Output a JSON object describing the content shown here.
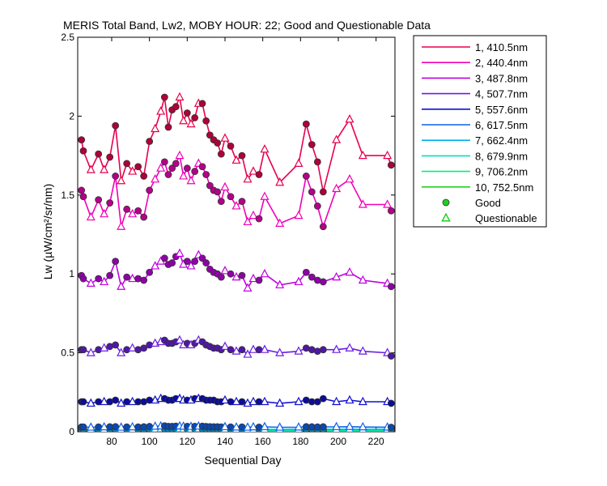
{
  "chart_data": {
    "type": "line",
    "title": "MERIS Total Band,  Lw2, MOBY HOUR: 22;  Good and Questionable Data",
    "xlabel": "Sequential Day",
    "ylabel": "Lw (µW/cm²/sr/nm)",
    "xlim": [
      62,
      230
    ],
    "ylim": [
      0,
      2.5
    ],
    "xticks": [
      80,
      100,
      120,
      140,
      160,
      180,
      200,
      220
    ],
    "yticks": [
      0,
      0.5,
      1,
      1.5,
      2,
      2.5
    ],
    "ytick_labels": [
      "0",
      "0.5",
      "1",
      "1.5",
      "2",
      "2.5"
    ],
    "grid": false,
    "legend_position": "outside-right",
    "x": [
      64,
      65,
      69,
      73,
      76,
      79,
      82,
      85,
      88,
      91,
      94,
      97,
      100,
      103,
      106,
      108,
      110,
      112,
      114,
      116,
      118,
      120,
      122,
      124,
      126,
      128,
      130,
      132,
      134,
      136,
      138,
      140,
      143,
      146,
      149,
      152,
      155,
      158,
      161,
      169,
      179,
      183,
      186,
      189,
      192,
      199,
      206,
      213,
      226,
      228
    ],
    "quality": [
      "G",
      "G",
      "Q",
      "G",
      "Q",
      "G",
      "G",
      "Q",
      "G",
      "Q",
      "G",
      "G",
      "G",
      "Q",
      "Q",
      "G",
      "G",
      "G",
      "G",
      "Q",
      "Q",
      "G",
      "Q",
      "G",
      "Q",
      "G",
      "G",
      "G",
      "G",
      "G",
      "G",
      "Q",
      "G",
      "Q",
      "G",
      "Q",
      "Q",
      "G",
      "Q",
      "Q",
      "Q",
      "G",
      "G",
      "G",
      "G",
      "Q",
      "Q",
      "Q",
      "Q",
      "G"
    ],
    "series": [
      {
        "name": "1, 410.5nm",
        "color": "#e8004c",
        "values": [
          1.85,
          1.78,
          1.66,
          1.76,
          1.66,
          1.74,
          1.94,
          1.59,
          1.7,
          1.65,
          1.68,
          1.62,
          1.84,
          1.92,
          2.03,
          2.12,
          1.93,
          2.04,
          2.06,
          2.12,
          1.97,
          2.02,
          1.95,
          1.99,
          2.08,
          2.08,
          1.97,
          1.88,
          1.85,
          1.83,
          1.76,
          1.86,
          1.81,
          1.72,
          1.75,
          1.6,
          1.65,
          1.63,
          1.79,
          1.58,
          1.7,
          1.95,
          1.82,
          1.71,
          1.52,
          1.85,
          1.98,
          1.75,
          1.75,
          1.69
        ]
      },
      {
        "name": "2, 440.4nm",
        "color": "#f000b8",
        "values": [
          1.53,
          1.49,
          1.36,
          1.47,
          1.38,
          1.45,
          1.62,
          1.3,
          1.41,
          1.38,
          1.4,
          1.36,
          1.53,
          1.6,
          1.67,
          1.71,
          1.63,
          1.67,
          1.7,
          1.75,
          1.62,
          1.67,
          1.59,
          1.65,
          1.7,
          1.68,
          1.63,
          1.56,
          1.53,
          1.52,
          1.46,
          1.55,
          1.49,
          1.43,
          1.46,
          1.33,
          1.37,
          1.35,
          1.49,
          1.32,
          1.37,
          1.62,
          1.52,
          1.43,
          1.3,
          1.54,
          1.6,
          1.44,
          1.44,
          1.4
        ]
      },
      {
        "name": "3, 487.8nm",
        "color": "#c000e0",
        "values": [
          0.99,
          0.97,
          0.94,
          0.97,
          0.95,
          0.99,
          1.08,
          0.92,
          0.98,
          0.97,
          0.97,
          0.96,
          1.01,
          1.05,
          1.08,
          1.1,
          1.06,
          1.07,
          1.11,
          1.13,
          1.06,
          1.08,
          1.05,
          1.08,
          1.12,
          1.1,
          1.07,
          1.03,
          1.01,
          1.0,
          0.98,
          1.02,
          1.0,
          0.98,
          0.99,
          0.91,
          0.97,
          0.96,
          1.0,
          0.93,
          0.95,
          1.01,
          0.98,
          0.96,
          0.95,
          0.98,
          1.01,
          0.96,
          0.94,
          0.92
        ]
      },
      {
        "name": "4, 507.7nm",
        "color": "#6a1de0",
        "values": [
          0.52,
          0.52,
          0.5,
          0.52,
          0.53,
          0.54,
          0.55,
          0.5,
          0.52,
          0.53,
          0.52,
          0.53,
          0.55,
          0.56,
          0.57,
          0.58,
          0.56,
          0.56,
          0.57,
          0.58,
          0.55,
          0.56,
          0.55,
          0.56,
          0.58,
          0.57,
          0.55,
          0.54,
          0.53,
          0.53,
          0.52,
          0.54,
          0.52,
          0.51,
          0.52,
          0.49,
          0.52,
          0.52,
          0.52,
          0.5,
          0.51,
          0.53,
          0.52,
          0.51,
          0.52,
          0.52,
          0.53,
          0.51,
          0.5,
          0.48
        ]
      },
      {
        "name": "5, 557.6nm",
        "color": "#1010d0",
        "values": [
          0.19,
          0.19,
          0.18,
          0.19,
          0.19,
          0.19,
          0.2,
          0.18,
          0.19,
          0.19,
          0.19,
          0.19,
          0.2,
          0.2,
          0.21,
          0.21,
          0.2,
          0.2,
          0.21,
          0.21,
          0.2,
          0.2,
          0.2,
          0.21,
          0.21,
          0.21,
          0.2,
          0.2,
          0.2,
          0.19,
          0.19,
          0.2,
          0.19,
          0.19,
          0.19,
          0.18,
          0.19,
          0.19,
          0.19,
          0.18,
          0.19,
          0.2,
          0.19,
          0.19,
          0.21,
          0.19,
          0.2,
          0.19,
          0.19,
          0.18
        ]
      },
      {
        "name": "6, 617.5nm",
        "color": "#1060e8",
        "values": [
          0.03,
          0.03,
          0.028,
          0.03,
          0.03,
          0.031,
          0.032,
          0.028,
          0.03,
          0.03,
          0.03,
          0.031,
          0.033,
          0.034,
          0.036,
          0.037,
          0.034,
          0.034,
          0.035,
          0.036,
          0.034,
          0.034,
          0.033,
          0.034,
          0.035,
          0.035,
          0.033,
          0.032,
          0.031,
          0.031,
          0.03,
          0.031,
          0.03,
          0.029,
          0.03,
          0.028,
          0.03,
          0.029,
          0.031,
          0.028,
          0.029,
          0.032,
          0.031,
          0.03,
          0.031,
          0.031,
          0.032,
          0.03,
          0.029,
          0.028
        ]
      },
      {
        "name": "7, 662.4nm",
        "color": "#00b0f0",
        "values": [
          0.015,
          0.015,
          0.014,
          0.015,
          0.015,
          0.015,
          0.016,
          0.014,
          0.015,
          0.015,
          0.015,
          0.015,
          0.016,
          0.017,
          0.018,
          0.018,
          0.017,
          0.017,
          0.018,
          0.018,
          0.017,
          0.017,
          0.016,
          0.017,
          0.018,
          0.017,
          0.016,
          0.016,
          0.016,
          0.015,
          0.015,
          0.016,
          0.015,
          0.015,
          0.015,
          0.014,
          0.015,
          0.015,
          0.015,
          0.014,
          0.015,
          0.016,
          0.015,
          0.015,
          0.016,
          0.015,
          0.016,
          0.015,
          0.015,
          0.014
        ]
      },
      {
        "name": "8, 679.9nm",
        "color": "#00e0c0",
        "values": [
          0.012,
          0.012,
          0.011,
          0.012,
          0.012,
          0.012,
          0.013,
          0.011,
          0.012,
          0.012,
          0.012,
          0.012,
          0.013,
          0.014,
          0.014,
          0.015,
          0.014,
          0.014,
          0.014,
          0.015,
          0.014,
          0.014,
          0.013,
          0.014,
          0.014,
          0.014,
          0.013,
          0.013,
          0.013,
          0.012,
          0.012,
          0.013,
          0.012,
          0.012,
          0.012,
          0.011,
          0.012,
          0.012,
          0.012,
          0.011,
          0.012,
          0.013,
          0.012,
          0.012,
          0.013,
          0.012,
          0.013,
          0.012,
          0.012,
          0.011
        ]
      },
      {
        "name": "9, 706.2nm",
        "color": "#00f080",
        "values": [
          0.006,
          0.006,
          0.005,
          0.006,
          0.006,
          0.006,
          0.007,
          0.005,
          0.006,
          0.006,
          0.006,
          0.006,
          0.007,
          0.007,
          0.008,
          0.008,
          0.007,
          0.007,
          0.008,
          0.008,
          0.007,
          0.007,
          0.007,
          0.007,
          0.008,
          0.007,
          0.007,
          0.007,
          0.007,
          0.006,
          0.006,
          0.007,
          0.006,
          0.006,
          0.006,
          0.005,
          0.006,
          0.006,
          0.006,
          0.005,
          0.006,
          0.007,
          0.006,
          0.006,
          0.007,
          0.006,
          0.007,
          0.006,
          0.006,
          0.005
        ]
      },
      {
        "name": "10, 752.5nm",
        "color": "#20d020",
        "values": [
          0.002,
          0.002,
          0.002,
          0.002,
          0.002,
          0.002,
          0.003,
          0.002,
          0.002,
          0.002,
          0.002,
          0.002,
          0.003,
          0.003,
          0.003,
          0.003,
          0.003,
          0.003,
          0.003,
          0.003,
          0.003,
          0.003,
          0.003,
          0.003,
          0.003,
          0.003,
          0.003,
          0.003,
          0.003,
          0.002,
          0.002,
          0.003,
          0.002,
          0.002,
          0.002,
          0.002,
          0.002,
          0.002,
          0.002,
          0.002,
          0.002,
          0.003,
          0.002,
          0.002,
          0.003,
          0.002,
          0.003,
          0.002,
          0.002,
          0.002
        ]
      }
    ],
    "legend_markers": [
      {
        "label": "Good",
        "marker": "circle",
        "color": "#20d020"
      },
      {
        "label": "Questionable",
        "marker": "triangle",
        "color": "#20d020"
      }
    ]
  }
}
